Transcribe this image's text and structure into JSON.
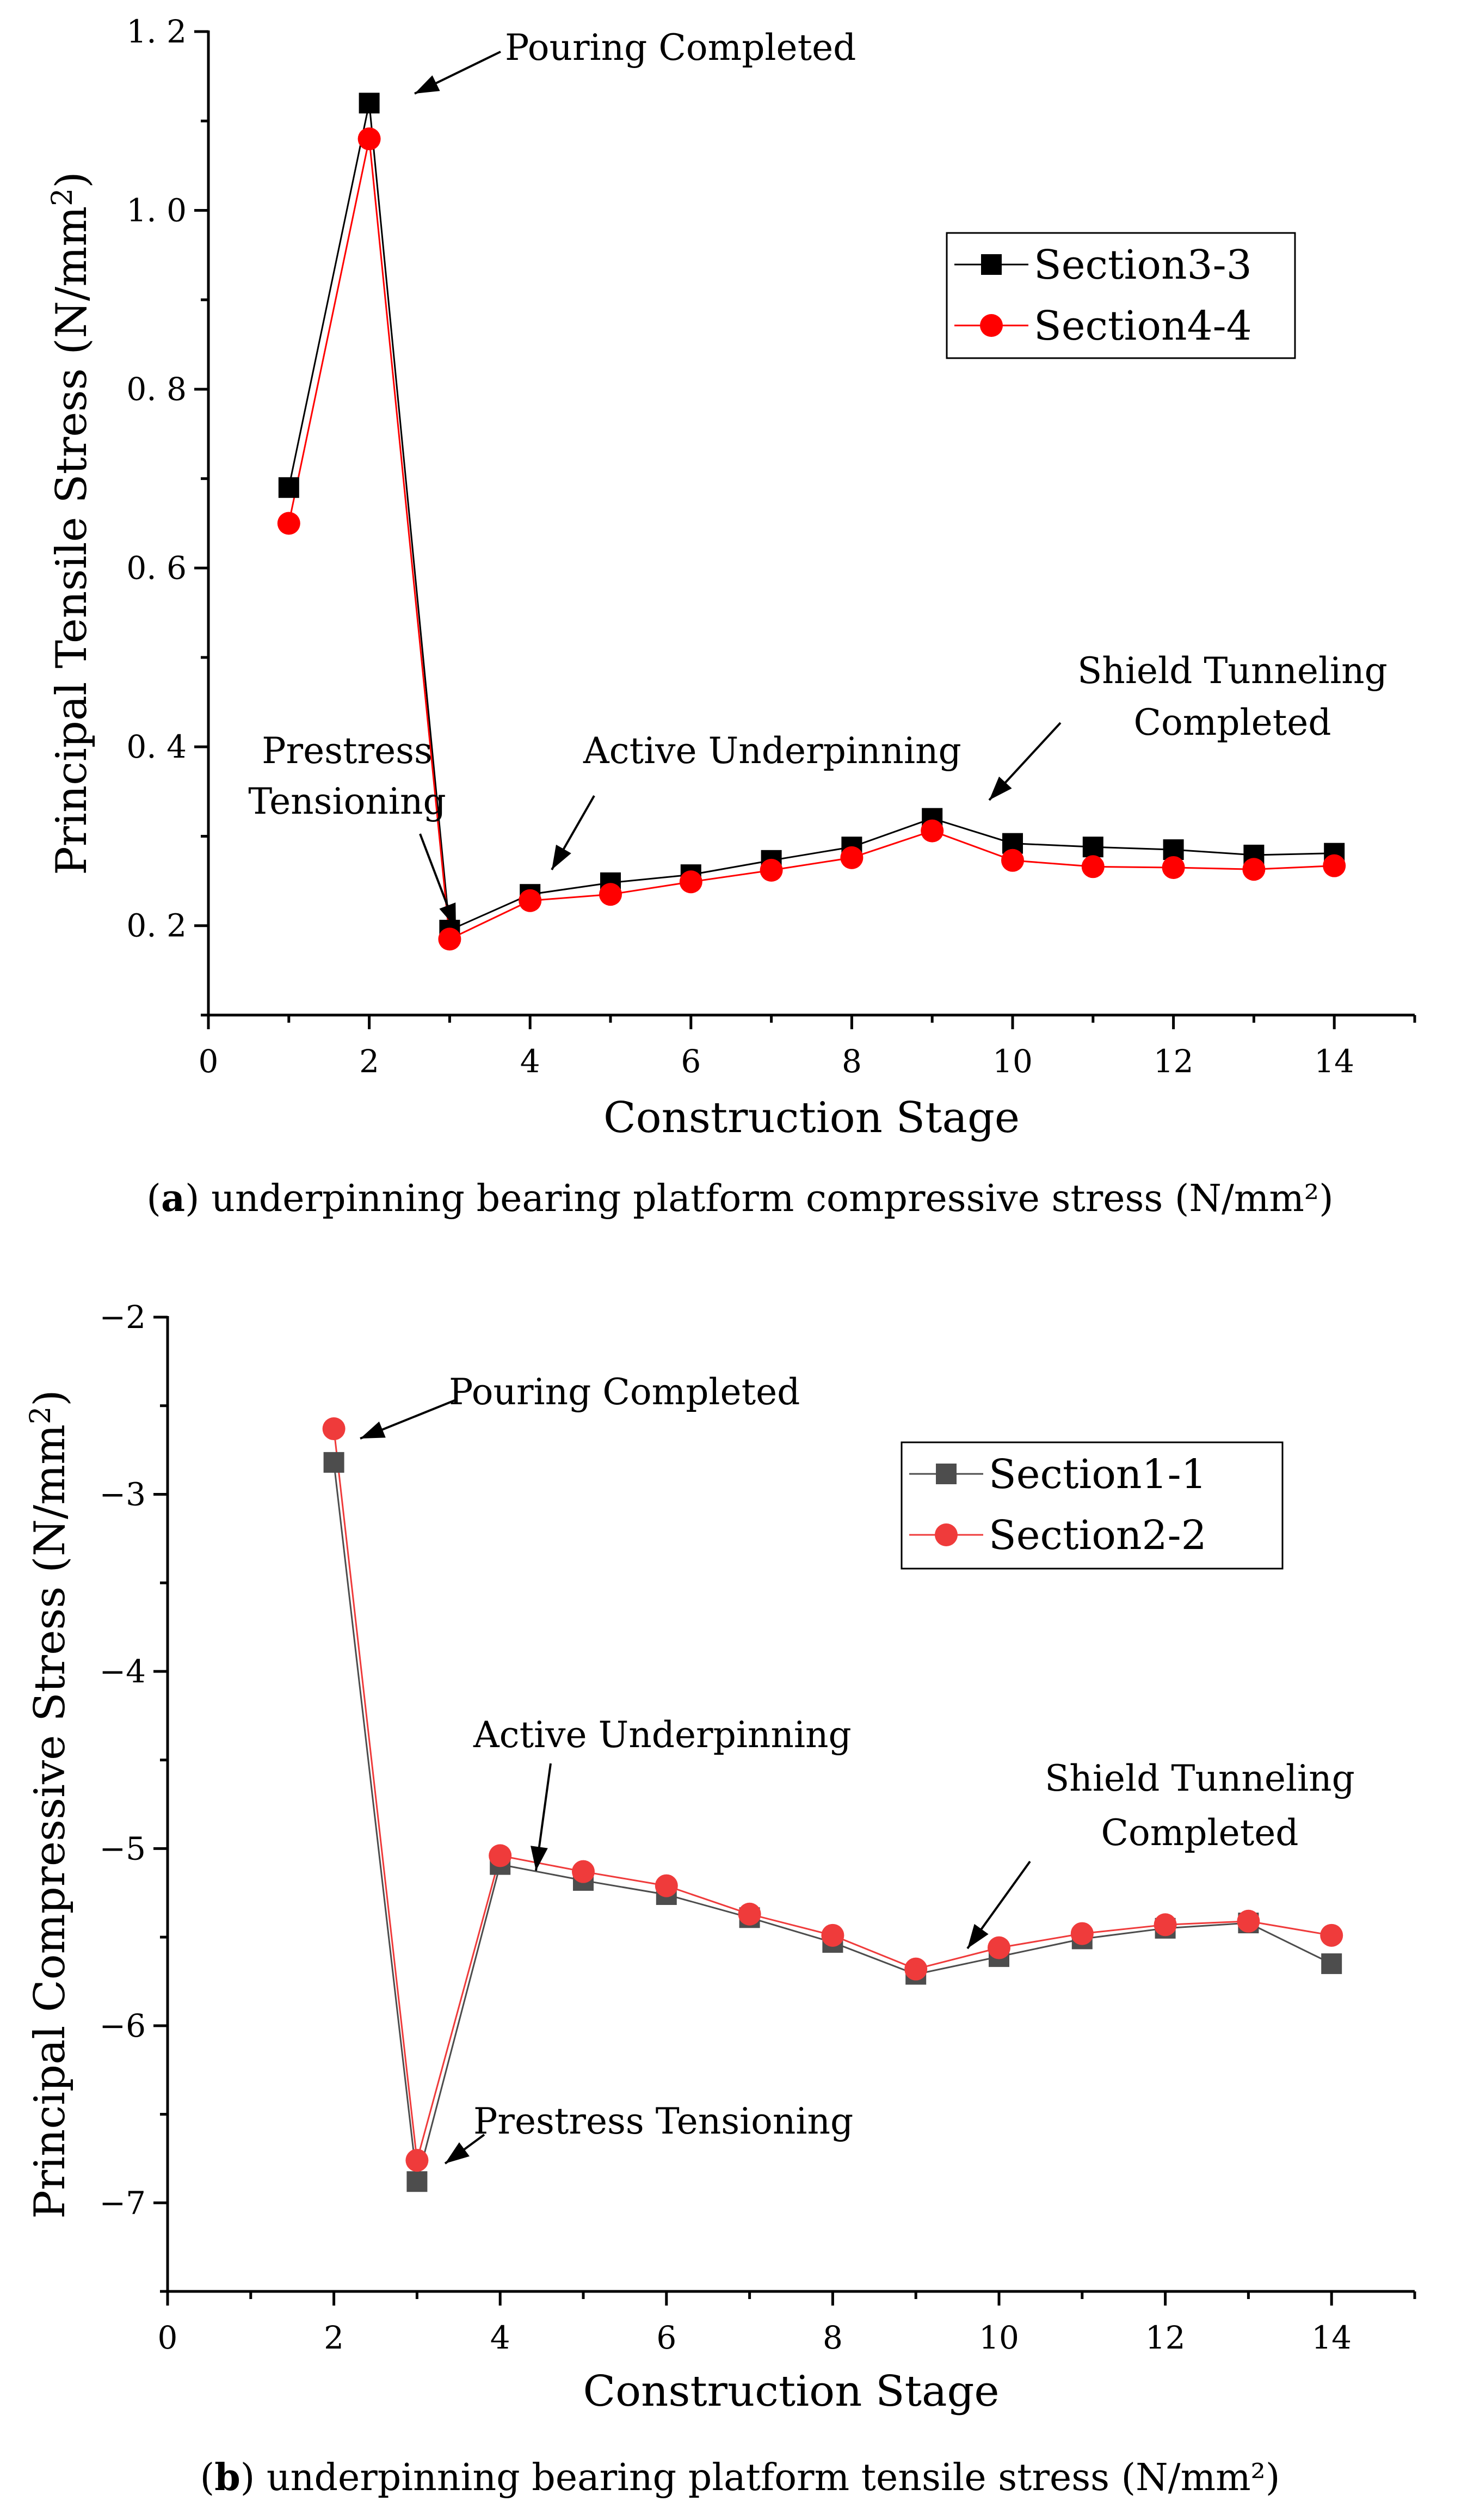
{
  "chart_data": [
    {
      "type": "line",
      "title": "",
      "caption_label": "a",
      "caption_rest": " underpinning bearing platform compressive stress (N/mm²)",
      "xlabel": "Construction Stage",
      "ylabel": "Principal Tensile Stress  (N/mm",
      "ylabel_sup": "2",
      "ylabel_end": ")",
      "xlim": [
        0,
        15
      ],
      "ylim": [
        0.1,
        1.2
      ],
      "xticks": [
        0,
        2,
        4,
        6,
        8,
        10,
        12,
        14
      ],
      "yticks": [
        0.2,
        0.4,
        0.6,
        0.8,
        1.0,
        1.2
      ],
      "ytick_labels": [
        "0. 2",
        "0. 4",
        "0. 6",
        "0. 8",
        "1. 0",
        "1. 2"
      ],
      "legend_position": "top-right",
      "series": [
        {
          "name": "Section3-3",
          "marker": "square",
          "color": "#000000",
          "x": [
            1,
            2,
            3,
            4,
            5,
            6,
            7,
            8,
            9,
            10,
            11,
            12,
            13,
            14
          ],
          "values": [
            0.69,
            1.12,
            0.195,
            0.235,
            0.248,
            0.257,
            0.273,
            0.288,
            0.32,
            0.292,
            0.288,
            0.285,
            0.279,
            0.281
          ]
        },
        {
          "name": "Section4-4",
          "marker": "circle",
          "color": "#ff0000",
          "x": [
            1,
            2,
            3,
            4,
            5,
            6,
            7,
            8,
            9,
            10,
            11,
            12,
            13,
            14
          ],
          "values": [
            0.65,
            1.08,
            0.185,
            0.228,
            0.235,
            0.249,
            0.262,
            0.276,
            0.306,
            0.273,
            0.266,
            0.265,
            0.263,
            0.267
          ]
        }
      ],
      "annotations": [
        {
          "text": "Pouring Completed",
          "x": 2,
          "y": 1.12
        },
        {
          "text": "Prestress\nTensioning",
          "x": 3,
          "y": 0.185
        },
        {
          "text": "Active Underpinning",
          "x": 4,
          "y": 0.228
        },
        {
          "text": "Shield Tunneling\nCompleted",
          "x": 9,
          "y": 0.32
        }
      ]
    },
    {
      "type": "line",
      "title": "",
      "caption_label": "b",
      "caption_rest": " underpinning bearing platform tensile stress (N/mm²)",
      "xlabel": "Construction Stage",
      "ylabel": "Principal Compressive Stress  (N/mm",
      "ylabel_sup": "2",
      "ylabel_end": ")",
      "xlim": [
        0,
        15
      ],
      "ylim": [
        -7.5,
        -2
      ],
      "xticks": [
        0,
        2,
        4,
        6,
        8,
        10,
        12,
        14
      ],
      "yticks": [
        -7,
        -6,
        -5,
        -4,
        -3,
        -2
      ],
      "ytick_labels": [
        "−7",
        "−6",
        "−5",
        "−4",
        "−3",
        "−2"
      ],
      "legend_position": "top-right",
      "series": [
        {
          "name": "Section1-1",
          "marker": "square",
          "color": "#4d4d4d",
          "x": [
            2,
            3,
            4,
            5,
            6,
            7,
            8,
            9,
            10,
            11,
            12,
            13,
            14
          ],
          "values": [
            -2.82,
            -6.88,
            -5.09,
            -5.18,
            -5.26,
            -5.39,
            -5.53,
            -5.71,
            -5.61,
            -5.51,
            -5.45,
            -5.42,
            -5.65
          ]
        },
        {
          "name": "Section2-2",
          "marker": "circle",
          "color": "#ef3b3b",
          "x": [
            2,
            3,
            4,
            5,
            6,
            7,
            8,
            9,
            10,
            11,
            12,
            13,
            14
          ],
          "values": [
            -2.63,
            -6.76,
            -5.04,
            -5.13,
            -5.21,
            -5.37,
            -5.49,
            -5.68,
            -5.56,
            -5.48,
            -5.43,
            -5.41,
            -5.49
          ]
        }
      ],
      "annotations": [
        {
          "text": "Pouring Completed",
          "x": 2,
          "y": -2.63
        },
        {
          "text": "Active Underpinning",
          "x": 4,
          "y": -5.04
        },
        {
          "text": "Shield Tunneling\nCompleted",
          "x": 9,
          "y": -5.68
        },
        {
          "text": "Prestress Tensioning",
          "x": 3,
          "y": -6.88
        }
      ]
    }
  ]
}
